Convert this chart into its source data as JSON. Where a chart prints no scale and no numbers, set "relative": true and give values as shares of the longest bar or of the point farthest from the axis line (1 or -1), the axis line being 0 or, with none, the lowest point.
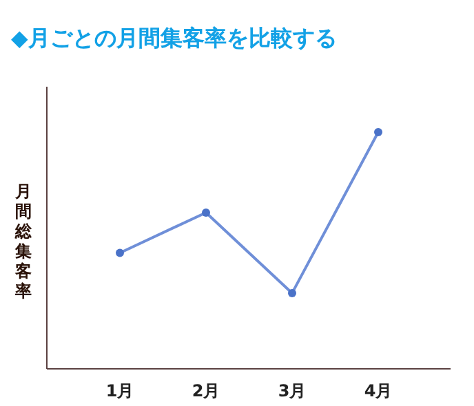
{
  "chart_data": {
    "type": "line",
    "title": "◆月ごとの月間集客率を比較する",
    "ylabel": "月間総集客率",
    "categories": [
      "1月",
      "2月",
      "3月",
      "4月"
    ],
    "relative": true,
    "series": [
      {
        "color": "#6f8fd8",
        "values": [
          0.49,
          0.66,
          0.32,
          1
        ]
      }
    ],
    "marker": "circle",
    "line_style": "solid"
  }
}
